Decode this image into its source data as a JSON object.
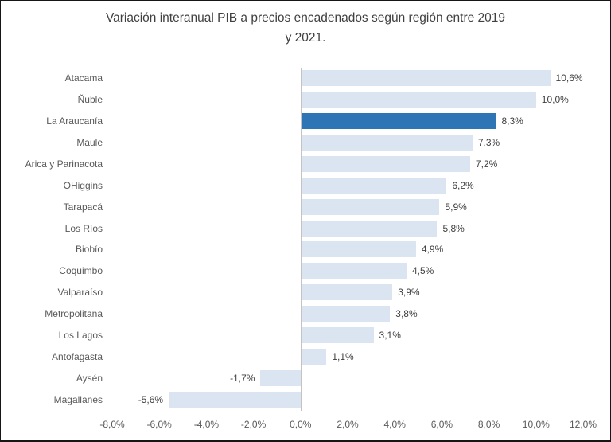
{
  "chart_data": {
    "type": "bar",
    "orientation": "horizontal",
    "title": "Variación interanual PIB a precios encadenados según región entre 2019 y 2021.",
    "title_lines": [
      "Variación interanual PIB a precios encadenados según región entre 2019",
      "y 2021."
    ],
    "categories": [
      "Atacama",
      "Ñuble",
      "La Araucanía",
      "Maule",
      "Arica y Parinacota",
      "OHiggins",
      "Tarapacá",
      "Los Ríos",
      "Biobío",
      "Coquimbo",
      "Valparaíso",
      "Metropolitana",
      "Los Lagos",
      "Antofagasta",
      "Aysén",
      "Magallanes"
    ],
    "values": [
      10.6,
      10.0,
      8.3,
      7.3,
      7.2,
      6.2,
      5.9,
      5.8,
      4.9,
      4.5,
      3.9,
      3.8,
      3.1,
      1.1,
      -1.7,
      -5.6
    ],
    "value_labels": [
      "10,6%",
      "10,0%",
      "8,3%",
      "7,3%",
      "7,2%",
      "6,2%",
      "5,9%",
      "5,8%",
      "4,9%",
      "4,5%",
      "3,9%",
      "3,8%",
      "3,1%",
      "1,1%",
      "-1,7%",
      "-5,6%"
    ],
    "highlight_index": 2,
    "highlighted_category": "La Araucanía",
    "xlabel": "",
    "ylabel": "",
    "xlim": [
      -8,
      12
    ],
    "x_tick_values": [
      -8,
      -6,
      -4,
      -2,
      0,
      2,
      4,
      6,
      8,
      10,
      12
    ],
    "x_tick_labels": [
      "-8,0%",
      "-6,0%",
      "-4,0%",
      "-2,0%",
      "0,0%",
      "2,0%",
      "4,0%",
      "6,0%",
      "8,0%",
      "10,0%",
      "12,0%"
    ],
    "grid": "off",
    "legend": "none",
    "colors": {
      "bar": "#dbe5f1",
      "highlight": "#2e75b6",
      "axis_line": "#c3c3c3",
      "title_text": "#404040",
      "category_text": "#595959",
      "tick_text": "#595959",
      "value_text": "#404040",
      "background": "#ffffff"
    }
  }
}
